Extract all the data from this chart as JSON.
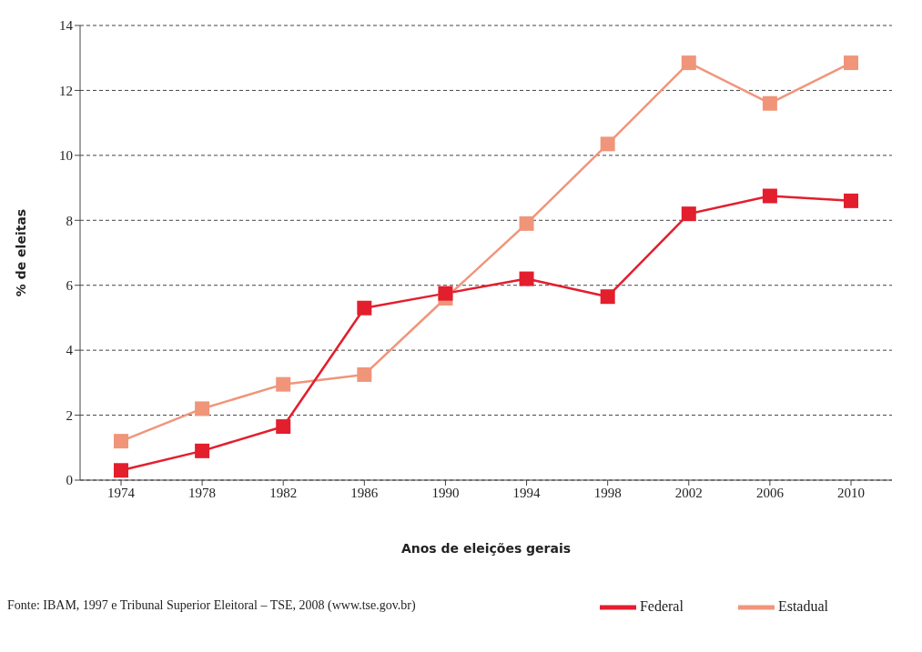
{
  "chart_data": {
    "type": "line",
    "xlabel": "Anos de eleições gerais",
    "ylabel": "% de eleitas",
    "categories": [
      "1974",
      "1978",
      "1982",
      "1986",
      "1990",
      "1994",
      "1998",
      "2002",
      "2006",
      "2010"
    ],
    "series": [
      {
        "name": "Federal",
        "color": "#e31e2d",
        "values": [
          0.3,
          0.9,
          1.65,
          5.3,
          5.75,
          6.2,
          5.65,
          8.2,
          8.75,
          8.6
        ]
      },
      {
        "name": "Estadual",
        "color": "#f0957a",
        "values": [
          1.2,
          2.2,
          2.95,
          3.25,
          5.6,
          7.9,
          10.35,
          12.85,
          11.6,
          12.85
        ]
      }
    ],
    "ylim": [
      0,
      14
    ],
    "yticks": [
      0,
      2,
      4,
      6,
      8,
      10,
      12,
      14
    ],
    "grid": "y",
    "legend": "bottom right",
    "marker": "square",
    "line_style": "solid",
    "annotations": [
      "Fonte: IBAM, 1997 e Tribunal Superior Eleitoral – TSE, 2008 (www.tse.gov.br)"
    ]
  }
}
